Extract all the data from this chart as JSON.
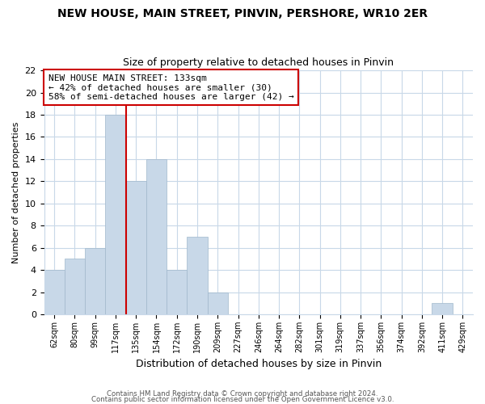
{
  "title": "NEW HOUSE, MAIN STREET, PINVIN, PERSHORE, WR10 2ER",
  "subtitle": "Size of property relative to detached houses in Pinvin",
  "xlabel": "Distribution of detached houses by size in Pinvin",
  "ylabel": "Number of detached properties",
  "bar_color": "#c8d8e8",
  "bar_edge_color": "#a0b8cc",
  "bin_labels": [
    "62sqm",
    "80sqm",
    "99sqm",
    "117sqm",
    "135sqm",
    "154sqm",
    "172sqm",
    "190sqm",
    "209sqm",
    "227sqm",
    "246sqm",
    "264sqm",
    "282sqm",
    "301sqm",
    "319sqm",
    "337sqm",
    "356sqm",
    "374sqm",
    "392sqm",
    "411sqm",
    "429sqm"
  ],
  "bar_heights": [
    4,
    5,
    6,
    18,
    12,
    14,
    4,
    7,
    2,
    0,
    0,
    0,
    0,
    0,
    0,
    0,
    0,
    0,
    0,
    1,
    0
  ],
  "ylim": [
    0,
    22
  ],
  "yticks": [
    0,
    2,
    4,
    6,
    8,
    10,
    12,
    14,
    16,
    18,
    20,
    22
  ],
  "annotation_box_text": "NEW HOUSE MAIN STREET: 133sqm\n← 42% of detached houses are smaller (30)\n58% of semi-detached houses are larger (42) →",
  "annotation_box_color": "#ffffff",
  "annotation_line_color": "#cc0000",
  "footer_line1": "Contains HM Land Registry data © Crown copyright and database right 2024.",
  "footer_line2": "Contains public sector information licensed under the Open Government Licence v3.0.",
  "background_color": "#ffffff",
  "grid_color": "#c8d8e8"
}
